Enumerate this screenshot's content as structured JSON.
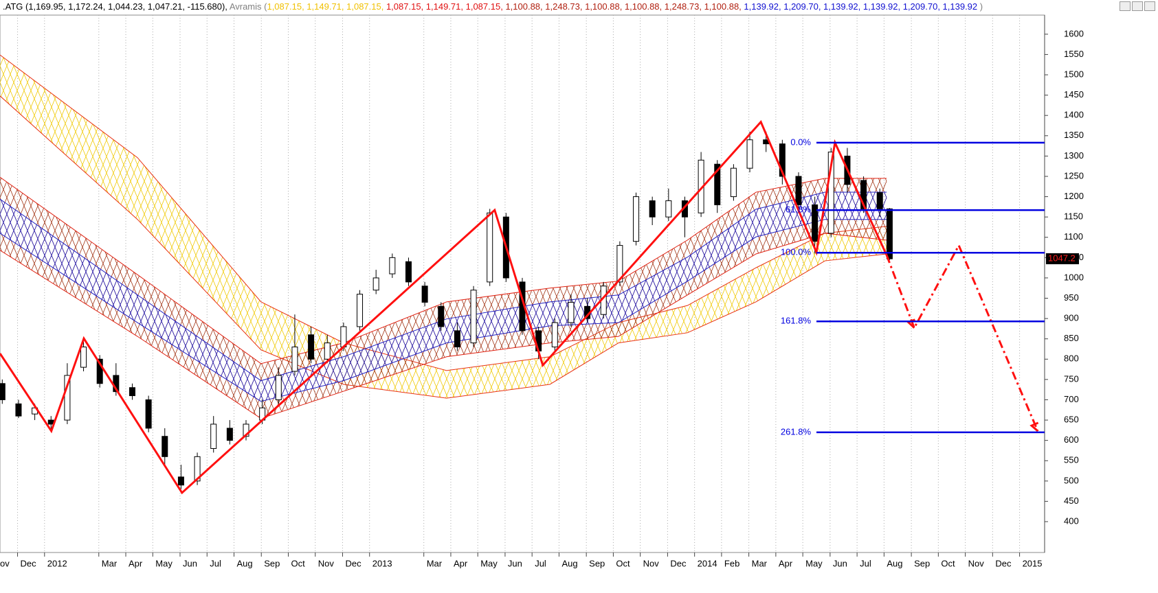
{
  "chart_data": {
    "type": "candlestick",
    "header": [
      {
        "text": ".ATG (1,169.95, 1,172.24, 1,044.23, 1,047.21, -115.680), ",
        "color": "#000000"
      },
      {
        "text": "Avramis (",
        "color": "#808080"
      },
      {
        "text": "1,087.15, 1,149.71, 1,087.15, ",
        "color": "#f0c000"
      },
      {
        "text": "1,087.15, 1,149.71, 1,087.15, ",
        "color": "#e01010"
      },
      {
        "text": "1,100.88, 1,248.73, 1,100.88, 1,100.88, 1,248.73, 1,100.88, ",
        "color": "#b02010"
      },
      {
        "text": "1,139.92, 1,209.70, 1,139.92, 1,139.92, 1,209.70, 1,139.92",
        "color": "#1010d0"
      },
      {
        "text": " )",
        "color": "#808080"
      }
    ],
    "xlim": [
      2011.863,
      2015.077
    ],
    "ylim": [
      324,
      1647
    ],
    "yticks": [
      400,
      450,
      500,
      550,
      600,
      650,
      700,
      750,
      800,
      850,
      900,
      950,
      1000,
      1050,
      1100,
      1150,
      1200,
      1250,
      1300,
      1350,
      1400,
      1450,
      1500,
      1550,
      1600
    ],
    "xticks": [
      {
        "value": 2011.833,
        "label": "ov"
      },
      {
        "value": 2011.917,
        "label": "Dec"
      },
      {
        "value": 2012.0,
        "label": "2012"
      },
      {
        "value": 2012.167,
        "label": "Mar"
      },
      {
        "value": 2012.25,
        "label": "Apr"
      },
      {
        "value": 2012.333,
        "label": "May"
      },
      {
        "value": 2012.417,
        "label": "Jun"
      },
      {
        "value": 2012.5,
        "label": "Jul"
      },
      {
        "value": 2012.583,
        "label": "Aug"
      },
      {
        "value": 2012.667,
        "label": "Sep"
      },
      {
        "value": 2012.75,
        "label": "Oct"
      },
      {
        "value": 2012.833,
        "label": "Nov"
      },
      {
        "value": 2012.917,
        "label": "Dec"
      },
      {
        "value": 2013.0,
        "label": "2013"
      },
      {
        "value": 2013.167,
        "label": "Mar"
      },
      {
        "value": 2013.25,
        "label": "Apr"
      },
      {
        "value": 2013.333,
        "label": "May"
      },
      {
        "value": 2013.417,
        "label": "Jun"
      },
      {
        "value": 2013.5,
        "label": "Jul"
      },
      {
        "value": 2013.583,
        "label": "Aug"
      },
      {
        "value": 2013.667,
        "label": "Sep"
      },
      {
        "value": 2013.75,
        "label": "Oct"
      },
      {
        "value": 2013.833,
        "label": "Nov"
      },
      {
        "value": 2013.917,
        "label": "Dec"
      },
      {
        "value": 2014.0,
        "label": "2014"
      },
      {
        "value": 2014.083,
        "label": "Feb"
      },
      {
        "value": 2014.167,
        "label": "Mar"
      },
      {
        "value": 2014.25,
        "label": "Apr"
      },
      {
        "value": 2014.333,
        "label": "May"
      },
      {
        "value": 2014.417,
        "label": "Jun"
      },
      {
        "value": 2014.5,
        "label": "Jul"
      },
      {
        "value": 2014.583,
        "label": "Aug"
      },
      {
        "value": 2014.667,
        "label": "Sep"
      },
      {
        "value": 2014.75,
        "label": "Oct"
      },
      {
        "value": 2014.833,
        "label": "Nov"
      },
      {
        "value": 2014.917,
        "label": "Dec"
      },
      {
        "value": 2015.0,
        "label": "2015"
      }
    ],
    "grid": true,
    "bands": {
      "x": [
        2011.863,
        2012.286,
        2012.666,
        2012.92,
        2013.237,
        2013.555,
        2013.766,
        2013.978,
        2014.189,
        2014.401,
        2014.591
      ],
      "series": [
        {
          "color": "#f0c800",
          "line_color": "#e83010",
          "upper": [
            1549,
            1296,
            941,
            840,
            772,
            806,
            890,
            932,
            1025,
            1110,
            1127
          ],
          "lower": [
            1448,
            1144,
            823,
            738,
            704,
            738,
            840,
            865,
            941,
            1042,
            1059
          ]
        },
        {
          "color": "#a03010",
          "line_color": "#e02010",
          "upper": [
            1248,
            1008,
            789,
            840,
            941,
            975,
            992,
            1093,
            1211,
            1245,
            1245
          ],
          "lower": [
            1068,
            856,
            654,
            721,
            806,
            840,
            856,
            958,
            1059,
            1110,
            1093
          ]
        },
        {
          "color": "#2020c0",
          "line_color": "#2020c0",
          "upper": [
            1194,
            958,
            747,
            806,
            899,
            941,
            958,
            1051,
            1169,
            1211,
            1211
          ],
          "lower": [
            1110,
            890,
            696,
            747,
            840,
            882,
            890,
            992,
            1101,
            1144,
            1144
          ]
        }
      ]
    },
    "candles": {
      "x": [
        2011.87,
        2011.92,
        2011.97,
        2012.02,
        2012.07,
        2012.12,
        2012.17,
        2012.22,
        2012.27,
        2012.32,
        2012.37,
        2012.42,
        2012.47,
        2012.52,
        2012.57,
        2012.62,
        2012.67,
        2012.72,
        2012.77,
        2012.82,
        2012.87,
        2012.92,
        2012.97,
        2013.02,
        2013.07,
        2013.12,
        2013.17,
        2013.22,
        2013.27,
        2013.32,
        2013.37,
        2013.42,
        2013.47,
        2013.52,
        2013.57,
        2013.62,
        2013.67,
        2013.72,
        2013.77,
        2013.82,
        2013.87,
        2013.92,
        2013.97,
        2014.02,
        2014.07,
        2014.12,
        2014.17,
        2014.22,
        2014.27,
        2014.32,
        2014.37,
        2014.42,
        2014.47,
        2014.52,
        2014.57,
        2014.6
      ],
      "open": [
        740,
        690,
        665,
        650,
        650,
        780,
        800,
        760,
        730,
        700,
        610,
        510,
        500,
        580,
        630,
        610,
        650,
        700,
        770,
        860,
        800,
        830,
        880,
        970,
        1010,
        1040,
        980,
        930,
        870,
        840,
        990,
        1150,
        990,
        870,
        830,
        890,
        930,
        910,
        990,
        1090,
        1190,
        1150,
        1190,
        1160,
        1280,
        1200,
        1270,
        1340,
        1330,
        1250,
        1180,
        1110,
        1300,
        1240,
        1210,
        1170
      ],
      "high": [
        750,
        700,
        690,
        660,
        790,
        850,
        810,
        790,
        740,
        710,
        630,
        540,
        570,
        660,
        650,
        650,
        700,
        780,
        910,
        880,
        860,
        890,
        970,
        1020,
        1060,
        1050,
        990,
        940,
        890,
        980,
        1170,
        1160,
        1000,
        880,
        900,
        960,
        950,
        990,
        1090,
        1210,
        1200,
        1220,
        1200,
        1310,
        1290,
        1280,
        1360,
        1360,
        1340,
        1260,
        1200,
        1320,
        1320,
        1250,
        1220,
        1172
      ],
      "low": [
        690,
        655,
        650,
        625,
        640,
        770,
        730,
        710,
        700,
        620,
        540,
        480,
        490,
        570,
        590,
        600,
        640,
        690,
        760,
        790,
        790,
        820,
        870,
        960,
        1000,
        980,
        930,
        870,
        820,
        830,
        980,
        990,
        860,
        800,
        820,
        880,
        890,
        900,
        980,
        1080,
        1130,
        1140,
        1100,
        1150,
        1160,
        1190,
        1260,
        1310,
        1230,
        1160,
        1060,
        1100,
        1210,
        1160,
        1150,
        1044
      ],
      "close": [
        700,
        660,
        680,
        640,
        760,
        830,
        740,
        720,
        710,
        630,
        560,
        490,
        560,
        640,
        600,
        640,
        680,
        760,
        830,
        800,
        840,
        880,
        960,
        1000,
        1050,
        990,
        940,
        880,
        830,
        970,
        1160,
        1000,
        870,
        820,
        890,
        940,
        900,
        980,
        1080,
        1200,
        1150,
        1190,
        1150,
        1290,
        1180,
        1270,
        1340,
        1330,
        1250,
        1180,
        1090,
        1310,
        1230,
        1170,
        1170,
        1047
      ]
    },
    "zigzag": {
      "color": "#ff1010",
      "x": [
        2011.863,
        2012.021,
        2012.121,
        2012.423,
        2013.385,
        2013.533,
        2014.204,
        2014.375,
        2014.432,
        2014.591
      ],
      "y": [
        814,
        623,
        851,
        471,
        1167,
        785,
        1384,
        1063,
        1333,
        1056
      ]
    },
    "projection": {
      "color": "#ff1010",
      "x": [
        2014.591,
        2014.676,
        2014.813,
        2015.056
      ],
      "y": [
        1056,
        877,
        1080,
        623
      ]
    },
    "fib_start": 2014.375,
    "fib_color": "#0000e0",
    "fib_levels": [
      {
        "price": 1333,
        "label": "0.0%"
      },
      {
        "price": 1167,
        "label": "61.8%"
      },
      {
        "price": 1062,
        "label": "100.0%"
      },
      {
        "price": 893,
        "label": "161.8%"
      },
      {
        "price": 620,
        "label": "261.8%"
      }
    ],
    "last_price": {
      "value": 1047.21,
      "label": "1047.2"
    }
  }
}
